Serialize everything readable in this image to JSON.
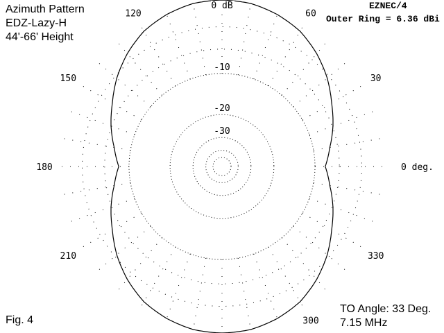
{
  "chart_data": {
    "type": "polar",
    "title_lines": [
      "Azimuth Pattern",
      "EDZ-Lazy-H",
      "44'-66' Height"
    ],
    "program": "EZNEC/4",
    "outer_ring": "Outer Ring = 6.36 dBi",
    "scale": "ARRL log-periodic (0.89 per 2 dB)",
    "ring_labels": [
      {
        "db": 0,
        "text": "0 dB"
      },
      {
        "db": -10,
        "text": "-10"
      },
      {
        "db": -20,
        "text": "-20"
      },
      {
        "db": -30,
        "text": "-30"
      }
    ],
    "rings_db": [
      0,
      -3,
      -6,
      -10,
      -20,
      -30,
      -40,
      -50
    ],
    "angle_labels": [
      {
        "deg": 0,
        "text": "0 deg."
      },
      {
        "deg": 30,
        "text": "30"
      },
      {
        "deg": 60,
        "text": "60"
      },
      {
        "deg": 120,
        "text": "120"
      },
      {
        "deg": 150,
        "text": "150"
      },
      {
        "deg": 180,
        "text": "180"
      },
      {
        "deg": 210,
        "text": "210"
      },
      {
        "deg": 300,
        "text": "300"
      },
      {
        "deg": 330,
        "text": "330"
      }
    ],
    "pattern_quadrant": {
      "angles_deg": [
        0,
        10,
        20,
        30,
        40,
        50,
        60,
        70,
        80,
        90
      ],
      "gain_db": [
        -8.2,
        -7.2,
        -5.9,
        -4.7,
        -3.3,
        -2.1,
        -1.1,
        -0.5,
        -0.1,
        0
      ]
    },
    "symmetry": "pattern mirrored about 0-180 and 90-270 axes",
    "grid": true,
    "fig_label": "Fig. 4",
    "footer_lines": [
      "TO Angle: 33 Deg.",
      "7.15 MHz"
    ]
  }
}
